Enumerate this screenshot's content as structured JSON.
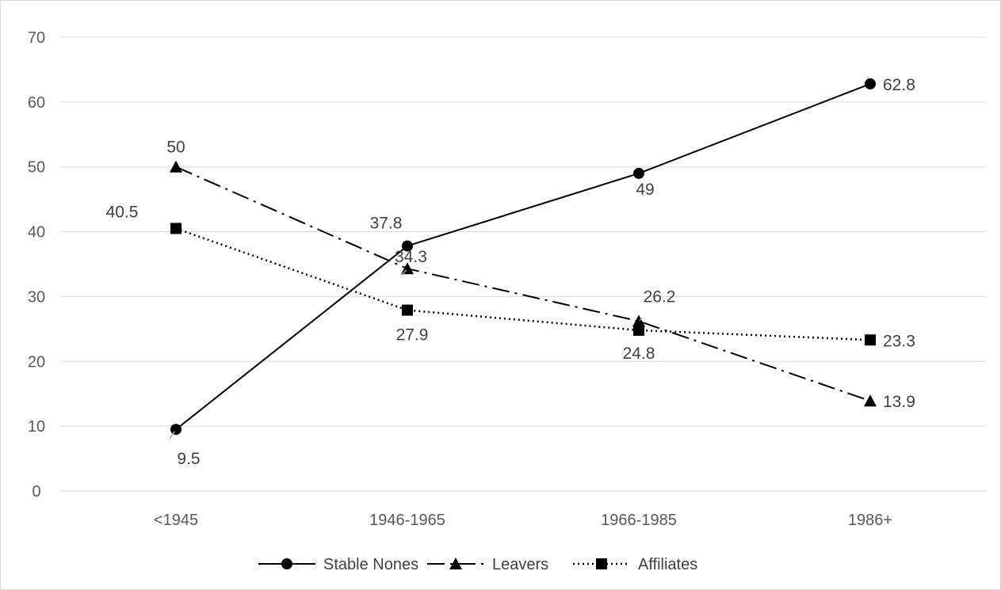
{
  "chart_data": {
    "type": "line",
    "title": "",
    "xlabel": "",
    "ylabel": "",
    "categories": [
      "<1945",
      "1946-1965",
      "1966-1985",
      "1986+"
    ],
    "ylim": [
      0,
      70
    ],
    "yticks": [
      0,
      10,
      20,
      30,
      40,
      50,
      60,
      70
    ],
    "grid": true,
    "legend_position": "bottom",
    "series": [
      {
        "name": "Stable Nones",
        "values": [
          9.5,
          37.8,
          49,
          62.8
        ],
        "labels": [
          "9.5",
          "37.8",
          "49",
          "62.8"
        ],
        "marker": "circle",
        "line_style": "solid",
        "color": "#000000"
      },
      {
        "name": "Leavers",
        "values": [
          50,
          34.3,
          26.2,
          13.9
        ],
        "labels": [
          "50",
          "34.3",
          "26.2",
          "13.9"
        ],
        "marker": "triangle",
        "line_style": "dash-dot",
        "color": "#000000"
      },
      {
        "name": "Affiliates",
        "values": [
          40.5,
          27.9,
          24.8,
          23.3
        ],
        "labels": [
          "40.5",
          "27.9",
          "24.8",
          "23.3"
        ],
        "marker": "square",
        "line_style": "dotted",
        "color": "#000000"
      }
    ],
    "gridline_color": "#d9d9d9",
    "text_color": "#595959"
  }
}
